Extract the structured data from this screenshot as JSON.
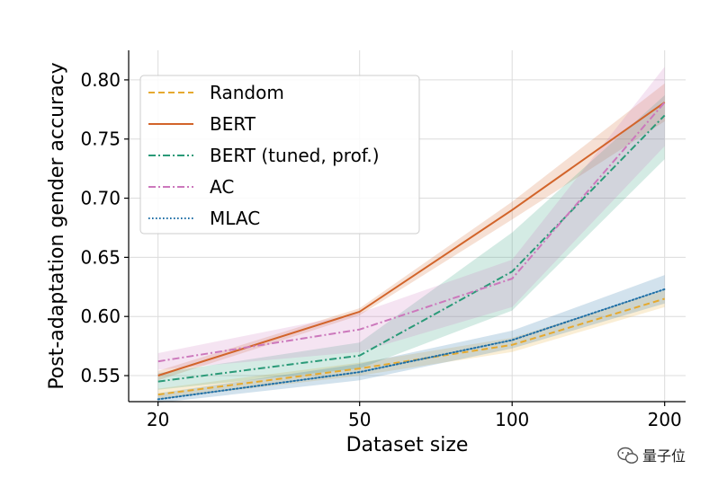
{
  "chart_data": {
    "type": "line",
    "title": "",
    "xlabel": "Dataset size",
    "ylabel": "Post-adaptation gender accuracy",
    "x": [
      20,
      50,
      100,
      200
    ],
    "x_scale": "log",
    "xlim": [
      17.5,
      220
    ],
    "ylim": [
      0.528,
      0.825
    ],
    "xticks": [
      20,
      50,
      100,
      200
    ],
    "yticks": [
      0.55,
      0.6,
      0.65,
      0.7,
      0.75,
      0.8
    ],
    "ytick_labels": [
      "0.55",
      "0.60",
      "0.65",
      "0.70",
      "0.75",
      "0.80"
    ],
    "grid": true,
    "legend_position": "upper-left",
    "series": [
      {
        "name": "Random",
        "color": "#e5a92f",
        "style": "dashed",
        "values": [
          0.534,
          0.556,
          0.576,
          0.615
        ],
        "lower": [
          0.53,
          0.55,
          0.57,
          0.608
        ],
        "upper": [
          0.539,
          0.561,
          0.582,
          0.622
        ]
      },
      {
        "name": "BERT",
        "color": "#d2642a",
        "style": "solid",
        "values": [
          0.55,
          0.604,
          0.69,
          0.781
        ],
        "lower": [
          0.546,
          0.601,
          0.682,
          0.765
        ],
        "upper": [
          0.554,
          0.607,
          0.697,
          0.797
        ]
      },
      {
        "name": "BERT (tuned, prof.)",
        "color": "#2a9a78",
        "style": "dashdot",
        "values": [
          0.545,
          0.567,
          0.638,
          0.77
        ],
        "lower": [
          0.538,
          0.556,
          0.605,
          0.733
        ],
        "upper": [
          0.552,
          0.578,
          0.671,
          0.787
        ]
      },
      {
        "name": "AC",
        "color": "#cc78bc",
        "style": "dashdot",
        "values": [
          0.562,
          0.589,
          0.632,
          0.781
        ],
        "lower": [
          0.555,
          0.57,
          0.608,
          0.744
        ],
        "upper": [
          0.569,
          0.603,
          0.648,
          0.811
        ]
      },
      {
        "name": "MLAC",
        "color": "#1f6fa6",
        "style": "dotted",
        "values": [
          0.53,
          0.553,
          0.58,
          0.623
        ],
        "lower": [
          0.527,
          0.546,
          0.573,
          0.611
        ],
        "upper": [
          0.535,
          0.56,
          0.588,
          0.635
        ]
      }
    ]
  },
  "watermark": {
    "text": "量子位",
    "icon": "wechat-icon"
  }
}
